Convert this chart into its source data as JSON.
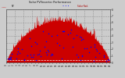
{
  "title": "Solar PV/Inverter Performance",
  "bg_color": "#cccccc",
  "plot_bg_color": "#cccccc",
  "grid_color": "#888888",
  "bar_color": "#cc0000",
  "dot_color": "#0000ff",
  "n_points": 400,
  "n_blue_dots": 80,
  "y_right_labels": [
    "0",
    "1",
    "2",
    "3",
    "4",
    "5",
    "6",
    "7",
    "8"
  ],
  "x_tick_count": 30
}
